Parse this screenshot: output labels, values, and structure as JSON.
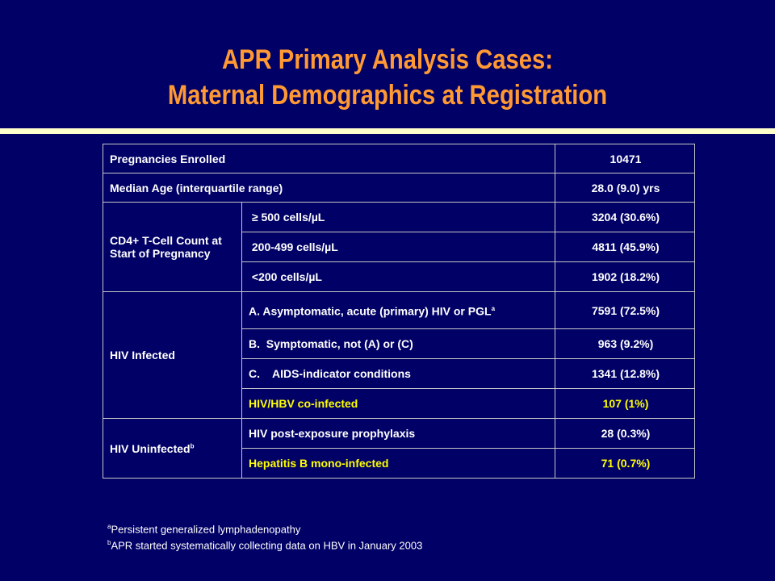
{
  "title": {
    "line1": "APR Primary Analysis Cases:",
    "line2": "Maternal Demographics at Registration"
  },
  "table": {
    "pregnancies_label": "Pregnancies Enrolled",
    "pregnancies_value": "10471",
    "median_age_label": "Median Age (interquartile range)",
    "median_age_value": "28.0 (9.0) yrs",
    "cd4_label": "CD4+ T-Cell Count at Start of Pregnancy",
    "cd4_rows": [
      {
        "label": " ≥ 500 cells/µL",
        "value": "3204 (30.6%)"
      },
      {
        "label": " 200-499 cells/µL",
        "value": "4811 (45.9%)"
      },
      {
        "label": " <200 cells/µL",
        "value": "1902 (18.2%)"
      }
    ],
    "hiv_infected_label": "HIV Infected",
    "hiv_infected_rows": [
      {
        "label": "A.  Asymptomatic, acute (primary) HIV or PGL",
        "sup": "a",
        "value": "7591 (72.5%)"
      },
      {
        "label": "B.  Symptomatic, not (A) or (C)",
        "value": "963 (9.2%)"
      },
      {
        "label": "C.    AIDS-indicator conditions",
        "value": "1341 (12.8%)"
      },
      {
        "label": "HIV/HBV co-infected",
        "value": "107 (1%)"
      }
    ],
    "hiv_uninfected_label": "HIV Uninfected",
    "hiv_uninfected_sup": "b",
    "hiv_uninfected_rows": [
      {
        "label": "HIV post-exposure prophylaxis",
        "value": "28 (0.3%)"
      },
      {
        "label": "Hepatitis B mono-infected",
        "value": "71 (0.7%)"
      }
    ]
  },
  "footnotes": [
    {
      "marker": "a",
      "text": "Persistent generalized lymphadenopathy"
    },
    {
      "marker": "b",
      "text": "APR started  systematically collecting data on HBV in January 2003"
    }
  ],
  "colors": {
    "background": "#000066",
    "title": "#ff9933",
    "rule": "#ffffcc",
    "highlight": "#ffff00"
  }
}
